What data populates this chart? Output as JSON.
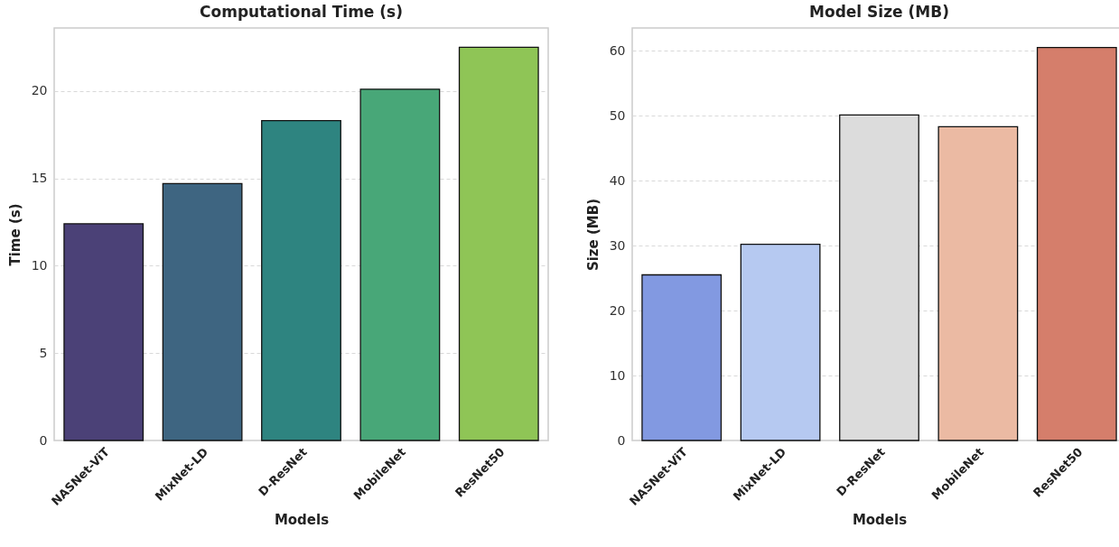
{
  "chart_data": [
    {
      "type": "bar",
      "title": "Computational Time (s)",
      "xlabel": "Models",
      "ylabel": "Time (s)",
      "categories": [
        "NASNet-ViT",
        "MixNet-LD",
        "D-ResNet",
        "MobileNet",
        "ResNet50"
      ],
      "values": [
        12.4,
        14.7,
        18.3,
        20.1,
        22.5
      ],
      "colors": [
        "#4b4177",
        "#3e6581",
        "#2e8480",
        "#48a778",
        "#8fc556"
      ],
      "ylim": [
        0,
        23.6
      ],
      "yticks": [
        0,
        5,
        10,
        15,
        20
      ],
      "grid": "y"
    },
    {
      "type": "bar",
      "title": "Model Size (MB)",
      "xlabel": "Models",
      "ylabel": "Size (MB)",
      "categories": [
        "NASNet-ViT",
        "MixNet-LD",
        "D-ResNet",
        "MobileNet",
        "ResNet50"
      ],
      "values": [
        25.5,
        30.2,
        50.1,
        48.3,
        60.5
      ],
      "colors": [
        "#8299e1",
        "#b6c9f1",
        "#dcdcdc",
        "#ebbaa3",
        "#d57e6b"
      ],
      "ylim": [
        0,
        63.5
      ],
      "yticks": [
        0,
        10,
        20,
        30,
        40,
        50,
        60
      ],
      "grid": "y"
    }
  ]
}
